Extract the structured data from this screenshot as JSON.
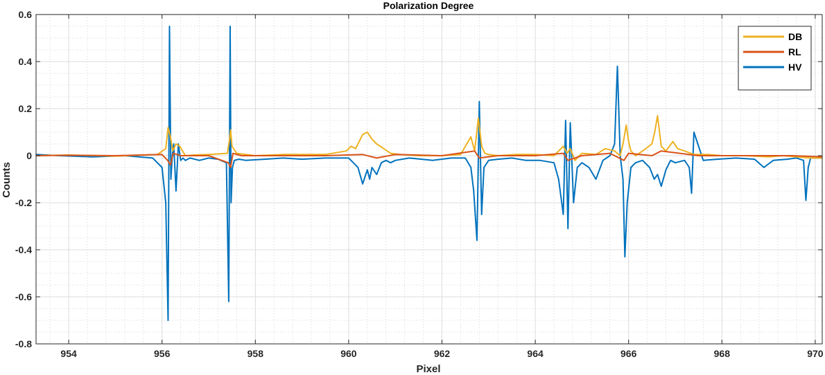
{
  "chart_data": {
    "type": "line",
    "title": "Polarization Degree",
    "xlabel": "Pixel",
    "ylabel": "Counts",
    "xlim": [
      953.3,
      970.15
    ],
    "ylim": [
      -0.8,
      0.6
    ],
    "xticks": [
      954,
      956,
      958,
      960,
      962,
      964,
      966,
      968,
      970
    ],
    "yticks": [
      -0.8,
      -0.6,
      -0.4,
      -0.2,
      0,
      0.2,
      0.4,
      0.6
    ],
    "xtick_labels": [
      "954",
      "956",
      "958",
      "960",
      "962",
      "964",
      "966",
      "968",
      "970"
    ],
    "ytick_labels": [
      "-0.8",
      "-0.6",
      "-0.4",
      "-0.2",
      "0",
      "0.2",
      "0.4",
      "0.6"
    ],
    "grid": true,
    "minor_grid": true,
    "legend_position": "top-right",
    "series": [
      {
        "name": "DB",
        "color": "#EDB120",
        "x": [
          953.3,
          954.0,
          955.0,
          955.9,
          956.08,
          956.13,
          956.18,
          956.23,
          956.3,
          956.38,
          956.5,
          956.7,
          957.0,
          957.4,
          957.44,
          957.47,
          957.5,
          957.6,
          958.0,
          958.6,
          959.0,
          959.5,
          959.95,
          960.05,
          960.15,
          960.3,
          960.4,
          960.5,
          960.6,
          960.75,
          960.9,
          961.1,
          961.5,
          962.0,
          962.4,
          962.62,
          962.7,
          962.78,
          962.85,
          962.92,
          963.0,
          963.2,
          963.6,
          964.0,
          964.4,
          964.6,
          964.68,
          964.75,
          964.85,
          965.0,
          965.3,
          965.5,
          965.7,
          965.82,
          965.88,
          965.95,
          966.0,
          966.05,
          966.15,
          966.3,
          966.5,
          966.56,
          966.62,
          966.7,
          966.8,
          966.95,
          967.05,
          967.2,
          967.4,
          967.7,
          968.0,
          968.5,
          969.0,
          969.3,
          969.6,
          969.9,
          970.15
        ],
        "y": [
          0.0,
          0.003,
          -0.002,
          0.005,
          0.03,
          0.12,
          0.08,
          0.02,
          0.05,
          0.04,
          0.0,
          0.003,
          0.005,
          0.01,
          0.06,
          0.11,
          0.04,
          0.01,
          0.0,
          0.005,
          0.005,
          0.005,
          0.02,
          0.04,
          0.03,
          0.09,
          0.1,
          0.07,
          0.05,
          0.03,
          0.01,
          0.005,
          0.0,
          0.0,
          0.005,
          0.08,
          0.02,
          0.16,
          0.04,
          0.01,
          0.005,
          0.0,
          0.005,
          0.005,
          0.0,
          0.04,
          0.01,
          0.03,
          -0.02,
          0.01,
          0.005,
          0.03,
          0.02,
          0.0,
          0.05,
          0.13,
          0.06,
          0.02,
          0.0,
          0.02,
          0.05,
          0.1,
          0.17,
          0.04,
          0.02,
          0.06,
          0.03,
          0.02,
          0.005,
          0.005,
          0.0,
          0.0,
          -0.005,
          0.0,
          -0.005,
          -0.01,
          -0.01
        ]
      },
      {
        "name": "RL",
        "color": "#D95319",
        "x": [
          953.3,
          954.0,
          955.0,
          956.0,
          956.12,
          956.18,
          956.24,
          956.4,
          957.0,
          957.42,
          957.47,
          957.52,
          957.7,
          958.5,
          959.5,
          960.3,
          960.6,
          961.0,
          962.0,
          962.7,
          962.8,
          963.2,
          964.0,
          964.6,
          964.7,
          965.0,
          965.6,
          965.9,
          966.0,
          966.5,
          966.7,
          967.5,
          968.5,
          969.5,
          970.15
        ],
        "y": [
          0.0,
          0.002,
          0.0,
          0.005,
          -0.02,
          -0.04,
          0.01,
          0.0,
          0.0,
          -0.03,
          -0.05,
          0.01,
          0.0,
          0.0,
          0.0,
          0.005,
          -0.01,
          0.005,
          0.0,
          0.02,
          -0.01,
          0.0,
          0.0,
          0.01,
          -0.02,
          0.0,
          0.01,
          -0.02,
          0.01,
          0.0,
          0.02,
          0.0,
          0.0,
          0.0,
          -0.005
        ]
      },
      {
        "name": "HV",
        "color": "#0072BD",
        "x": [
          953.3,
          953.8,
          954.5,
          955.2,
          955.8,
          956.0,
          956.08,
          956.13,
          956.16,
          956.19,
          956.22,
          956.25,
          956.3,
          956.35,
          956.4,
          956.45,
          956.5,
          956.6,
          956.8,
          957.0,
          957.2,
          957.38,
          957.43,
          957.46,
          957.48,
          957.51,
          957.55,
          957.65,
          957.8,
          958.2,
          958.6,
          959.0,
          959.5,
          960.0,
          960.1,
          960.2,
          960.3,
          960.4,
          960.45,
          960.5,
          960.6,
          960.7,
          960.8,
          960.9,
          961.0,
          961.3,
          961.8,
          962.2,
          962.5,
          962.62,
          962.68,
          962.75,
          962.8,
          962.85,
          962.9,
          963.0,
          963.2,
          963.5,
          963.8,
          964.1,
          964.4,
          964.5,
          964.6,
          964.65,
          964.7,
          964.75,
          964.82,
          964.9,
          965.0,
          965.15,
          965.3,
          965.45,
          965.6,
          965.7,
          965.76,
          965.82,
          965.88,
          965.92,
          965.97,
          966.05,
          966.15,
          966.3,
          966.45,
          966.55,
          966.62,
          966.7,
          966.8,
          966.9,
          967.0,
          967.2,
          967.3,
          967.35,
          967.4,
          967.6,
          967.9,
          968.3,
          968.7,
          968.9,
          969.1,
          969.4,
          969.6,
          969.75,
          969.8,
          969.85,
          969.9,
          970.15
        ],
        "y": [
          0.005,
          0.0,
          -0.005,
          0.0,
          -0.01,
          -0.05,
          -0.2,
          -0.7,
          0.55,
          -0.1,
          0.0,
          0.05,
          -0.15,
          0.05,
          -0.02,
          -0.01,
          -0.02,
          -0.01,
          -0.02,
          -0.01,
          -0.015,
          -0.03,
          -0.62,
          0.55,
          -0.2,
          -0.05,
          -0.02,
          -0.015,
          -0.02,
          -0.015,
          -0.01,
          -0.015,
          -0.01,
          -0.01,
          -0.03,
          -0.05,
          -0.12,
          -0.06,
          -0.1,
          -0.05,
          -0.08,
          -0.03,
          -0.02,
          -0.03,
          -0.02,
          -0.01,
          -0.02,
          -0.01,
          -0.01,
          -0.05,
          -0.15,
          -0.36,
          0.23,
          -0.25,
          -0.05,
          -0.02,
          -0.015,
          -0.01,
          -0.02,
          -0.02,
          -0.03,
          -0.1,
          -0.25,
          0.15,
          -0.31,
          0.14,
          -0.2,
          -0.05,
          -0.03,
          -0.05,
          -0.1,
          -0.02,
          0.0,
          0.05,
          0.38,
          0.0,
          -0.1,
          -0.43,
          -0.2,
          -0.05,
          -0.03,
          -0.02,
          -0.05,
          -0.1,
          -0.08,
          -0.13,
          -0.06,
          -0.02,
          -0.03,
          -0.02,
          -0.05,
          -0.16,
          0.1,
          -0.02,
          -0.015,
          -0.01,
          -0.015,
          -0.05,
          -0.02,
          -0.015,
          -0.01,
          -0.02,
          -0.19,
          -0.05,
          -0.01,
          -0.01
        ]
      }
    ]
  }
}
